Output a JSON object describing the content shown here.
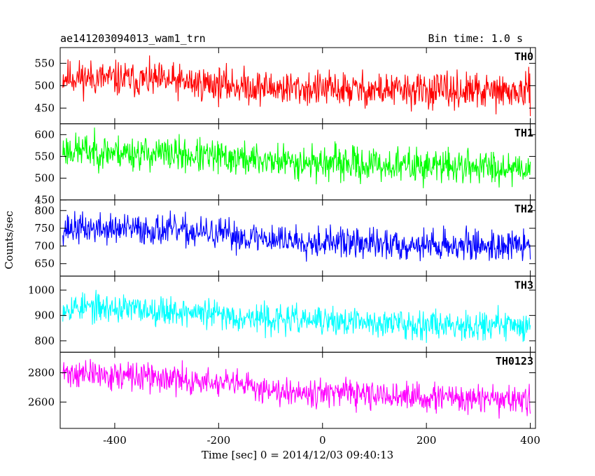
{
  "header": {
    "left_title": "ae141203094013_wam1_trn",
    "right_title": "Bin time: 1.0 s"
  },
  "axes": {
    "xlabel": "Time [sec] 0 = 2014/12/03 09:40:13",
    "ylabel": "Counts/sec"
  },
  "chart_data": {
    "type": "line",
    "title": "ae141203094013_wam1_trn",
    "subtitle": "Bin time: 1.0 s",
    "xlabel": "Time [sec] 0 = 2014/12/03 09:40:13",
    "ylabel": "Counts/sec",
    "xlim": [
      -505,
      410
    ],
    "x_ticks": [
      -400,
      -200,
      0,
      200,
      400
    ],
    "x_range_data": [
      -500,
      400
    ],
    "bin_time_s": 1.0,
    "panels": [
      {
        "name": "TH0",
        "color": "#ff0000",
        "ylim": [
          415,
          585
        ],
        "y_ticks": [
          450,
          500,
          550
        ],
        "trend": [
          [
            -500,
            520
          ],
          [
            -300,
            510
          ],
          [
            -100,
            495
          ],
          [
            100,
            490
          ],
          [
            400,
            485
          ]
        ],
        "noise_amplitude": 45,
        "seed": 11
      },
      {
        "name": "TH1",
        "color": "#00ff00",
        "ylim": [
          450,
          625
        ],
        "y_ticks": [
          450,
          500,
          550,
          600
        ],
        "trend": [
          [
            -500,
            565
          ],
          [
            -300,
            555
          ],
          [
            -100,
            540
          ],
          [
            100,
            530
          ],
          [
            400,
            525
          ]
        ],
        "noise_amplitude": 45,
        "seed": 23
      },
      {
        "name": "TH2",
        "color": "#0000ff",
        "ylim": [
          615,
          830
        ],
        "y_ticks": [
          650,
          700,
          750,
          800
        ],
        "trend": [
          [
            -500,
            750
          ],
          [
            -300,
            745
          ],
          [
            -100,
            720
          ],
          [
            100,
            705
          ],
          [
            400,
            700
          ]
        ],
        "noise_amplitude": 50,
        "seed": 37
      },
      {
        "name": "TH3",
        "color": "#00ffff",
        "ylim": [
          755,
          1055
        ],
        "y_ticks": [
          800,
          900,
          1000
        ],
        "trend": [
          [
            -500,
            935
          ],
          [
            -300,
            920
          ],
          [
            -100,
            885
          ],
          [
            100,
            870
          ],
          [
            400,
            860
          ]
        ],
        "noise_amplitude": 65,
        "seed": 53
      },
      {
        "name": "TH0123",
        "color": "#ff00ff",
        "ylim": [
          2420,
          2940
        ],
        "y_ticks": [
          2600,
          2800
        ],
        "trend": [
          [
            -500,
            2800
          ],
          [
            -300,
            2760
          ],
          [
            -100,
            2690
          ],
          [
            100,
            2640
          ],
          [
            400,
            2610
          ]
        ],
        "noise_amplitude": 110,
        "seed": 71
      }
    ]
  }
}
